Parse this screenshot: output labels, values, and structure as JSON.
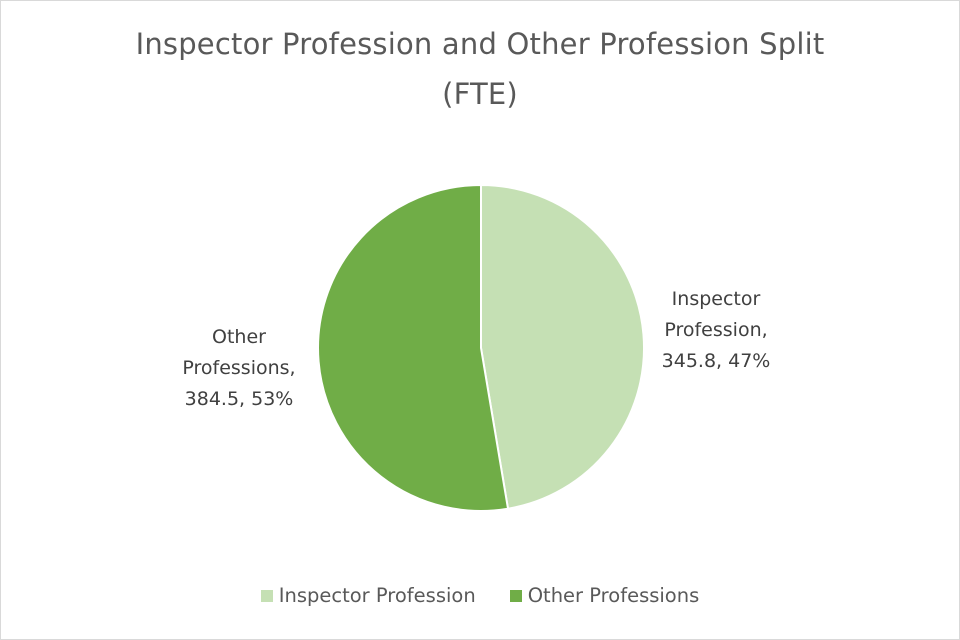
{
  "chart_data": {
    "type": "pie",
    "title_lines": [
      "Inspector Profession and Other Profession Split",
      "(FTE)"
    ],
    "categories": [
      "Inspector Profession",
      "Other Professions"
    ],
    "values": [
      345.8,
      384.5
    ],
    "percents": [
      "47%",
      "53%"
    ],
    "colors": [
      "#c5e0b4",
      "#70ad47"
    ],
    "data_labels": [
      [
        "Inspector",
        "Profession,",
        "345.8, 47%"
      ],
      [
        "Other",
        "Professions,",
        "384.5, 53%"
      ]
    ],
    "legend": {
      "position": "bottom",
      "entries": [
        "Inspector Profession",
        "Other Professions"
      ]
    },
    "start_angle_deg": 0,
    "direction": "clockwise"
  }
}
